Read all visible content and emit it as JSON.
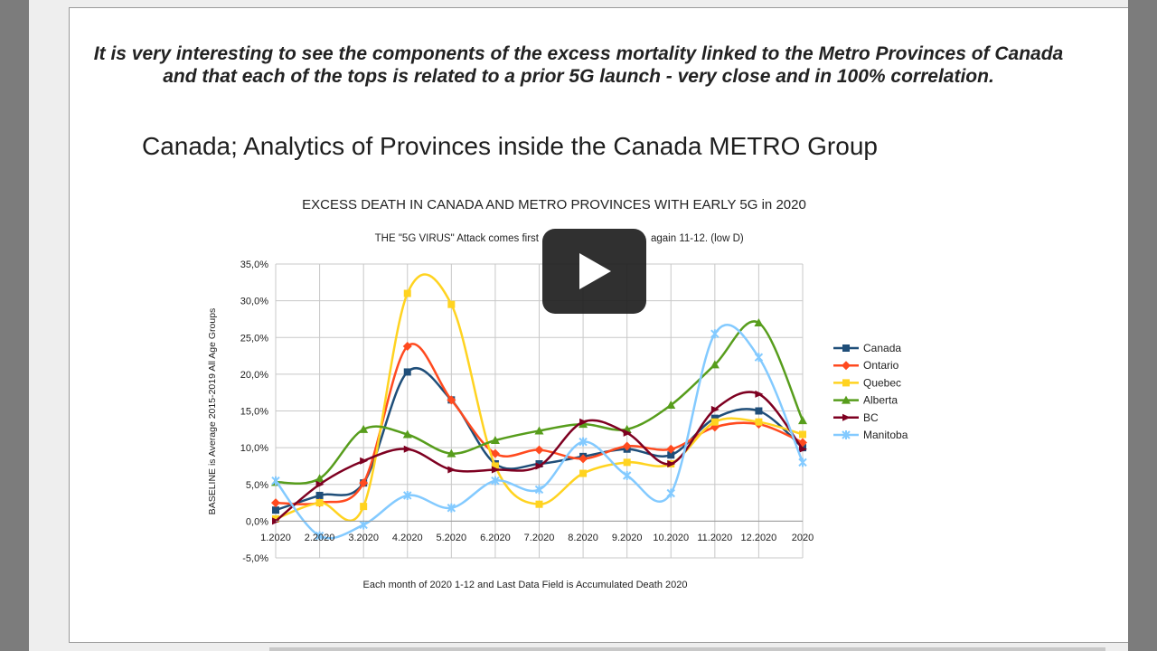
{
  "note": "It is very interesting to see the components of the excess mortality linked to the Metro Provinces of Canada and that each of the tops is related to a prior 5G launch -  very close and in 100% correlation.",
  "slide_title": "Canada; Analytics of Provinces inside the Canada METRO Group",
  "play_icon": "play-icon",
  "chart_data": {
    "type": "line",
    "title": "EXCESS DEATH IN CANADA AND METRO PROVINCES WITH EARLY 5G in 2020",
    "subtitle_left": "THE \"5G VIRUS\" Attack comes first",
    "subtitle_right": "again 11-12. (low D)",
    "xlabel": "Each month of 2020 1-12 and Last Data Field is Accumulated Death 2020",
    "ylabel": "BASELINE is Average 2015-2019 All Age Groups",
    "categories": [
      "1.2020",
      "2.2020",
      "3.2020",
      "4.2020",
      "5.2020",
      "6.2020",
      "7.2020",
      "8.2020",
      "9.2020",
      "10.2020",
      "11.2020",
      "12.2020",
      "2020"
    ],
    "yticks": [
      "35,0%",
      "30,0%",
      "25,0%",
      "20,0%",
      "15,0%",
      "10,0%",
      "5,0%",
      "0,0%",
      "-5,0%"
    ],
    "ylim": [
      -5,
      35
    ],
    "grid": true,
    "legend_position": "right",
    "series": [
      {
        "name": "Canada",
        "color": "#1f4e79",
        "marker": "square",
        "values": [
          1.5,
          3.5,
          5.2,
          20.3,
          16.5,
          7.8,
          7.8,
          8.8,
          9.8,
          9.0,
          14.0,
          15.0,
          10.0
        ]
      },
      {
        "name": "Ontario",
        "color": "#ff4a1f",
        "marker": "diamond",
        "values": [
          2.5,
          2.5,
          5.2,
          23.8,
          16.5,
          9.2,
          9.7,
          8.5,
          10.2,
          9.8,
          12.8,
          13.2,
          10.7
        ]
      },
      {
        "name": "Quebec",
        "color": "#ffd320",
        "marker": "square",
        "values": [
          0.3,
          2.5,
          2.0,
          31.0,
          29.5,
          7.5,
          2.3,
          6.5,
          8.0,
          7.8,
          13.5,
          13.5,
          11.8
        ]
      },
      {
        "name": "Alberta",
        "color": "#579d1c",
        "marker": "triangle",
        "values": [
          5.3,
          5.8,
          12.5,
          11.8,
          9.2,
          11.0,
          12.3,
          13.2,
          12.5,
          15.8,
          21.3,
          27.0,
          13.7
        ]
      },
      {
        "name": "BC",
        "color": "#7e0021",
        "marker": "triangle-right",
        "values": [
          0.0,
          5.0,
          8.2,
          9.8,
          7.0,
          7.0,
          7.5,
          13.5,
          12.0,
          7.8,
          15.2,
          17.3,
          9.8
        ]
      },
      {
        "name": "Manitoba",
        "color": "#83caff",
        "marker": "star",
        "values": [
          5.5,
          -2.0,
          -0.5,
          3.5,
          1.8,
          5.5,
          4.3,
          10.8,
          6.2,
          3.8,
          25.5,
          22.3,
          8.0
        ]
      }
    ]
  }
}
